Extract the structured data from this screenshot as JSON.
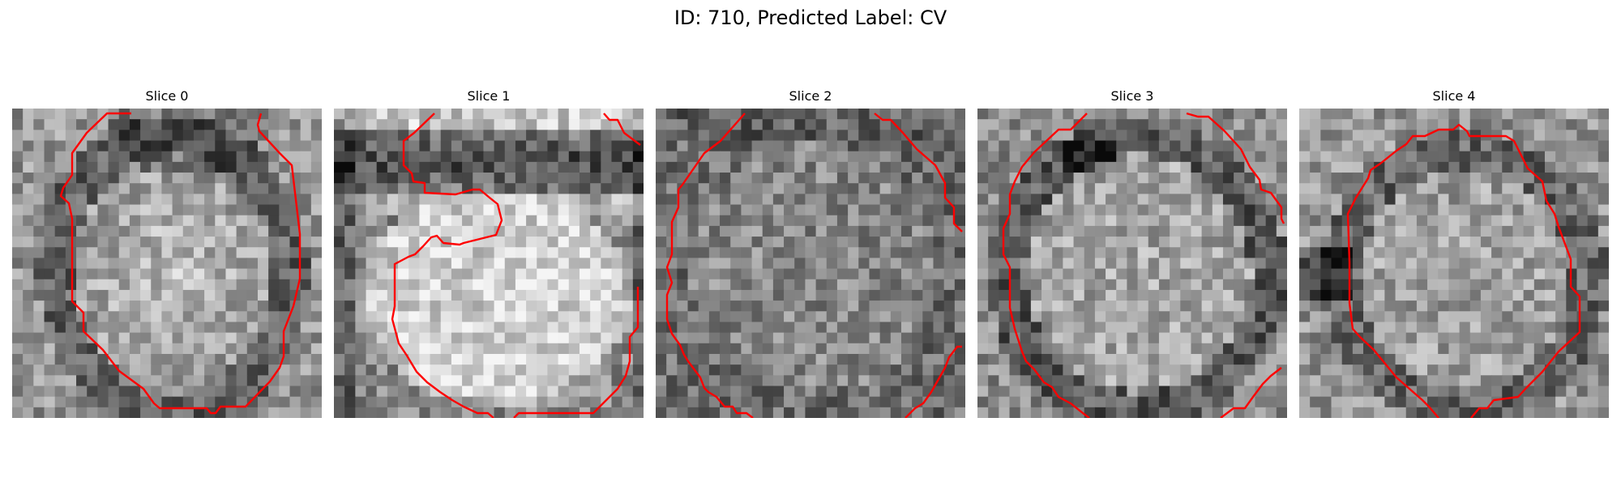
{
  "figure": {
    "title": "ID: 710, Predicted Label: CV"
  },
  "slices": [
    {
      "title": "Slice 0",
      "seed": 11,
      "profile": "round-dark-edge",
      "contour_color": "#ff0000"
    },
    {
      "title": "Slice 1",
      "seed": 23,
      "profile": "bright-center-dark-top",
      "contour_color": "#ff0000"
    },
    {
      "title": "Slice 2",
      "seed": 37,
      "profile": "speckled",
      "contour_color": "#ff0000"
    },
    {
      "title": "Slice 3",
      "seed": 41,
      "profile": "round-dark-rim",
      "contour_color": "#ff0000"
    },
    {
      "title": "Slice 4",
      "seed": 53,
      "profile": "round-dark-left",
      "contour_color": "#ff0000"
    }
  ]
}
